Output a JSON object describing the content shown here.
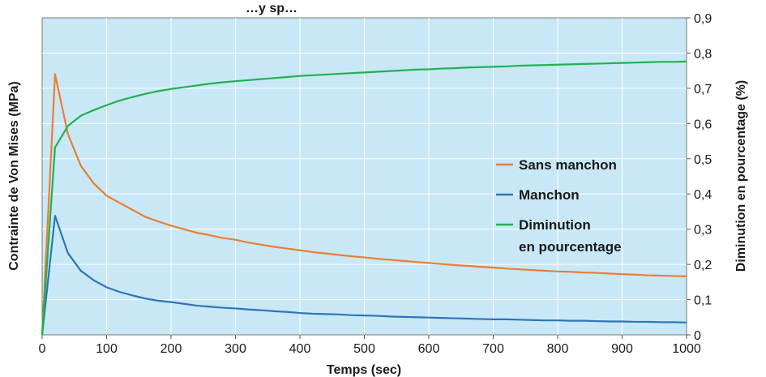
{
  "chart_data": {
    "type": "line",
    "title": "…y sp…",
    "xlabel": "Temps (sec)",
    "ylabel": "Contrainte de Von Mises (MPa)",
    "y2label": "Diminution en pourcentage (%)",
    "xlim": [
      0,
      1000
    ],
    "ylim": [
      0,
      0.9
    ],
    "x_ticks": [
      "0",
      "100",
      "200",
      "300",
      "400",
      "500",
      "600",
      "700",
      "800",
      "900",
      "1000"
    ],
    "y2_ticks": [
      "0",
      "0,1",
      "0,2",
      "0,3",
      "0,4",
      "0,5",
      "0,6",
      "0,7",
      "0,8",
      "0,9"
    ],
    "grid": true,
    "plot_background": "#c8e8f7",
    "legend_position": "right-center",
    "series": [
      {
        "name": "Sans manchon",
        "color": "#ed7d31",
        "x": [
          0,
          20,
          40,
          60,
          80,
          100,
          120,
          140,
          160,
          180,
          200,
          220,
          240,
          260,
          280,
          300,
          320,
          340,
          360,
          380,
          400,
          420,
          440,
          460,
          480,
          500,
          520,
          540,
          560,
          580,
          600,
          620,
          640,
          660,
          680,
          700,
          720,
          740,
          760,
          780,
          800,
          820,
          840,
          860,
          880,
          900,
          920,
          940,
          960,
          980,
          1000
        ],
        "values": [
          0,
          0.74,
          0.57,
          0.48,
          0.43,
          0.395,
          0.375,
          0.355,
          0.335,
          0.322,
          0.31,
          0.3,
          0.29,
          0.283,
          0.275,
          0.27,
          0.262,
          0.256,
          0.25,
          0.245,
          0.24,
          0.235,
          0.231,
          0.227,
          0.223,
          0.22,
          0.216,
          0.213,
          0.21,
          0.207,
          0.204,
          0.201,
          0.198,
          0.196,
          0.193,
          0.191,
          0.188,
          0.186,
          0.184,
          0.182,
          0.18,
          0.179,
          0.177,
          0.176,
          0.174,
          0.172,
          0.171,
          0.169,
          0.168,
          0.167,
          0.166
        ]
      },
      {
        "name": "Manchon",
        "color": "#2e75b6",
        "x": [
          0,
          20,
          40,
          60,
          80,
          100,
          120,
          140,
          160,
          180,
          200,
          220,
          240,
          260,
          280,
          300,
          320,
          340,
          360,
          380,
          400,
          420,
          440,
          460,
          480,
          500,
          520,
          540,
          560,
          580,
          600,
          620,
          640,
          660,
          680,
          700,
          720,
          740,
          760,
          780,
          800,
          820,
          840,
          860,
          880,
          900,
          920,
          940,
          960,
          980,
          1000
        ],
        "values": [
          0,
          0.338,
          0.232,
          0.182,
          0.155,
          0.135,
          0.122,
          0.112,
          0.103,
          0.097,
          0.093,
          0.088,
          0.083,
          0.08,
          0.077,
          0.075,
          0.072,
          0.07,
          0.067,
          0.065,
          0.062,
          0.06,
          0.059,
          0.058,
          0.056,
          0.055,
          0.054,
          0.052,
          0.051,
          0.05,
          0.049,
          0.048,
          0.047,
          0.046,
          0.045,
          0.044,
          0.044,
          0.043,
          0.042,
          0.041,
          0.041,
          0.04,
          0.04,
          0.039,
          0.038,
          0.038,
          0.037,
          0.037,
          0.036,
          0.036,
          0.035
        ]
      },
      {
        "name": "Diminution en pourcentage",
        "name_lines": [
          "Diminution",
          "en pourcentage"
        ],
        "axis": "right",
        "color": "#22b14c",
        "x": [
          0,
          20,
          40,
          60,
          80,
          100,
          120,
          140,
          160,
          180,
          200,
          220,
          240,
          260,
          280,
          300,
          320,
          340,
          360,
          380,
          400,
          420,
          440,
          460,
          480,
          500,
          520,
          540,
          560,
          580,
          600,
          620,
          640,
          660,
          680,
          700,
          720,
          740,
          760,
          780,
          800,
          820,
          840,
          860,
          880,
          900,
          920,
          940,
          960,
          980,
          1000
        ],
        "values": [
          0,
          0.532,
          0.593,
          0.622,
          0.638,
          0.652,
          0.665,
          0.675,
          0.684,
          0.692,
          0.698,
          0.703,
          0.708,
          0.713,
          0.717,
          0.72,
          0.723,
          0.726,
          0.729,
          0.732,
          0.735,
          0.737,
          0.739,
          0.741,
          0.743,
          0.745,
          0.747,
          0.749,
          0.751,
          0.753,
          0.754,
          0.756,
          0.757,
          0.759,
          0.76,
          0.761,
          0.762,
          0.764,
          0.765,
          0.766,
          0.767,
          0.768,
          0.769,
          0.77,
          0.771,
          0.772,
          0.773,
          0.774,
          0.775,
          0.775,
          0.776
        ]
      }
    ]
  }
}
